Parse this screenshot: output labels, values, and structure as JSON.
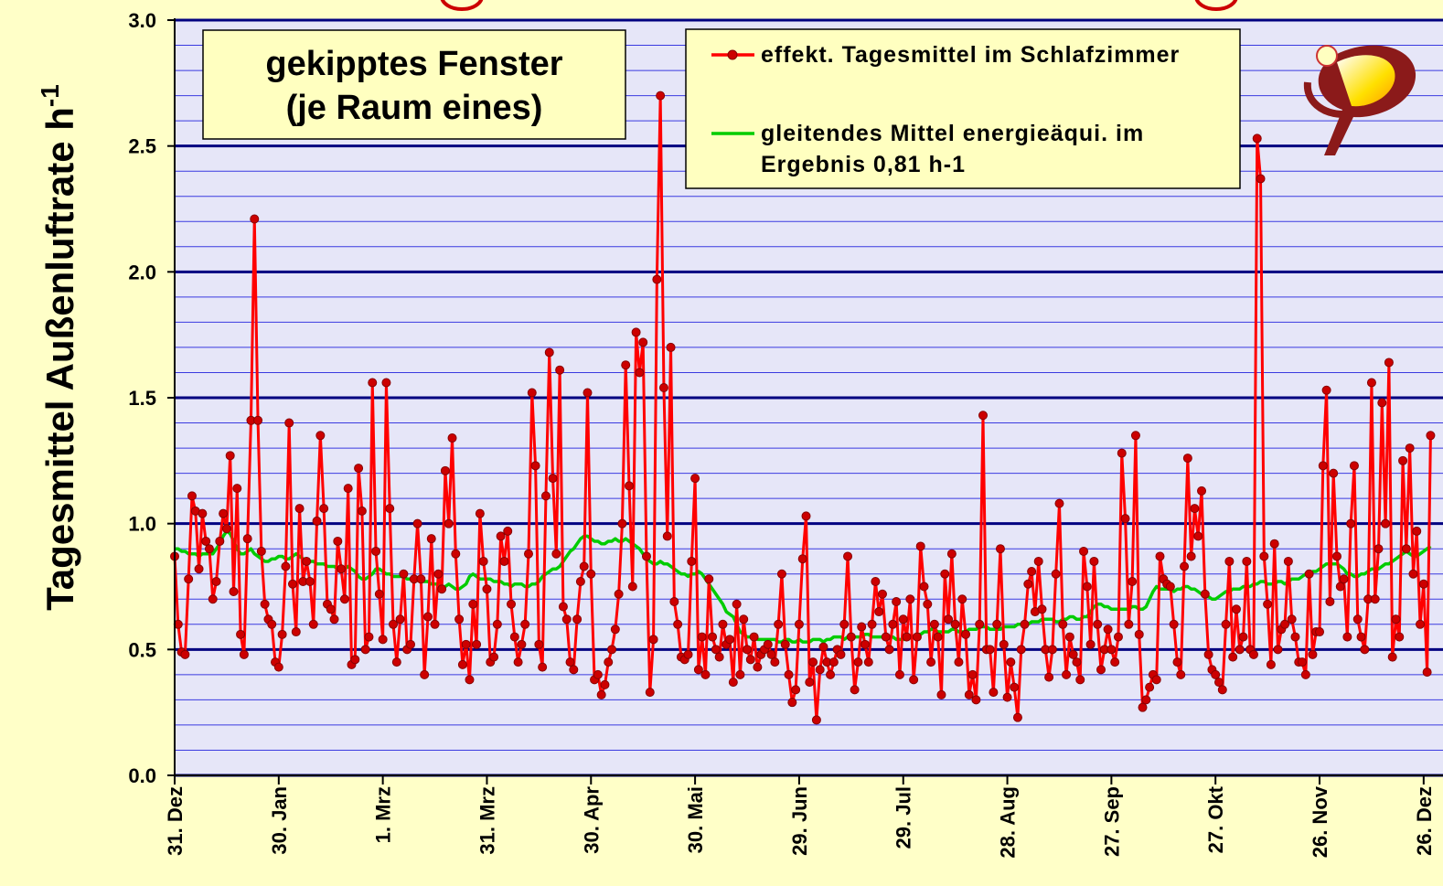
{
  "chart_data": {
    "type": "line",
    "annotations": [
      "gekipptes Fenster",
      "(je Raum eines)"
    ],
    "ylabel": "Tagesmittel Außenluftrate  h",
    "ylabel_sup": "-1",
    "ylim": [
      0,
      3
    ],
    "yticks": [
      {
        "value": 0,
        "label": "0.0"
      },
      0.5,
      {
        "value": 1,
        "label": "1.0"
      },
      1.5,
      {
        "value": 2,
        "label": "2.0"
      },
      2.5,
      {
        "value": 3,
        "label": "3.0"
      }
    ],
    "minor_yticks": [
      0.1,
      0.2,
      0.3,
      0.4,
      0.6,
      0.7,
      0.8,
      0.9,
      1.1,
      1.2,
      1.3,
      1.4,
      1.6,
      1.7,
      1.8,
      1.9,
      2.1,
      2.2,
      2.3,
      2.4,
      2.6,
      2.7,
      2.8,
      2.9
    ],
    "grid": true,
    "categories": [
      "31. Dez",
      null,
      null,
      null,
      null,
      null,
      null,
      null,
      null,
      null,
      null,
      null,
      null,
      null,
      null,
      null,
      null,
      null,
      null,
      null,
      null,
      null,
      null,
      null,
      null,
      null,
      null,
      null,
      null,
      null,
      "30. Jan",
      null,
      null,
      null,
      null,
      null,
      null,
      null,
      null,
      null,
      null,
      null,
      null,
      null,
      null,
      null,
      null,
      null,
      null,
      null,
      null,
      null,
      null,
      null,
      null,
      null,
      null,
      null,
      null,
      null,
      "1. Mrz",
      null,
      null,
      null,
      null,
      null,
      null,
      null,
      null,
      null,
      null,
      null,
      null,
      null,
      null,
      null,
      null,
      null,
      null,
      null,
      null,
      null,
      null,
      null,
      null,
      null,
      null,
      null,
      null,
      null,
      "31. Mrz",
      null,
      null,
      null,
      null,
      null,
      null,
      null,
      null,
      null,
      null,
      null,
      null,
      null,
      null,
      null,
      null,
      null,
      null,
      null,
      null,
      null,
      null,
      null,
      null,
      null,
      null,
      null,
      null,
      null,
      "30. Apr",
      null,
      null,
      null,
      null,
      null,
      null,
      null,
      null,
      null,
      null,
      null,
      null,
      null,
      null,
      null,
      null,
      null,
      null,
      null,
      null,
      null,
      null,
      null,
      null,
      null,
      null,
      null,
      null,
      null,
      "30. Mai",
      null,
      null,
      null,
      null,
      null,
      null,
      null,
      null,
      null,
      null,
      null,
      null,
      null,
      null,
      null,
      null,
      null,
      null,
      null,
      null,
      null,
      null,
      null,
      null,
      null,
      null,
      null,
      null,
      null,
      "29. Jun",
      null,
      null,
      null,
      null,
      null,
      null,
      null,
      null,
      null,
      null,
      null,
      null,
      null,
      null,
      null,
      null,
      null,
      null,
      null,
      null,
      null,
      null,
      null,
      null,
      null,
      null,
      null,
      null,
      null,
      "29. Jul",
      null,
      null,
      null,
      null,
      null,
      null,
      null,
      null,
      null,
      null,
      null,
      null,
      null,
      null,
      null,
      null,
      null,
      null,
      null,
      null,
      null,
      null,
      null,
      null,
      null,
      null,
      null,
      null,
      null,
      "28. Aug",
      null,
      null,
      null,
      null,
      null,
      null,
      null,
      null,
      null,
      null,
      null,
      null,
      null,
      null,
      null,
      null,
      null,
      null,
      null,
      null,
      null,
      null,
      null,
      null,
      null,
      null,
      null,
      null,
      null,
      "27. Sep",
      null,
      null,
      null,
      null,
      null,
      null,
      null,
      null,
      null,
      null,
      null,
      null,
      null,
      null,
      null,
      null,
      null,
      null,
      null,
      null,
      null,
      null,
      null,
      null,
      null,
      null,
      null,
      null,
      null,
      "27. Okt",
      null,
      null,
      null,
      null,
      null,
      null,
      null,
      null,
      null,
      null,
      null,
      null,
      null,
      null,
      null,
      null,
      null,
      null,
      null,
      null,
      null,
      null,
      null,
      null,
      null,
      null,
      null,
      null,
      null,
      "26. Nov",
      null,
      null,
      null,
      null,
      null,
      null,
      null,
      null,
      null,
      null,
      null,
      null,
      null,
      null,
      null,
      null,
      null,
      null,
      null,
      null,
      null,
      null,
      null,
      null,
      null,
      null,
      null,
      null,
      null,
      "26. Dez",
      null,
      null
    ],
    "series": [
      {
        "name": "effekt. Tagesmittel im Schlafzimmer",
        "color": "#ff0000",
        "marker_color": "#cc0000",
        "values": [
          0.87,
          0.6,
          0.49,
          0.48,
          0.78,
          1.11,
          1.05,
          0.82,
          1.04,
          0.93,
          0.9,
          0.7,
          0.77,
          0.93,
          1.04,
          0.98,
          1.27,
          0.73,
          1.14,
          0.56,
          0.48,
          0.94,
          1.41,
          2.21,
          1.41,
          0.89,
          0.68,
          0.62,
          0.6,
          0.45,
          0.43,
          0.56,
          0.83,
          1.4,
          0.76,
          0.57,
          1.06,
          0.77,
          0.85,
          0.77,
          0.6,
          1.01,
          1.35,
          1.06,
          0.68,
          0.66,
          0.62,
          0.93,
          0.82,
          0.7,
          1.14,
          0.44,
          0.46,
          1.22,
          1.05,
          0.5,
          0.55,
          1.56,
          0.89,
          0.72,
          0.54,
          1.56,
          1.06,
          0.6,
          0.45,
          0.62,
          0.8,
          0.5,
          0.52,
          0.78,
          1.0,
          0.78,
          0.4,
          0.63,
          0.94,
          0.6,
          0.8,
          0.74,
          1.21,
          1.0,
          1.34,
          0.88,
          0.62,
          0.44,
          0.52,
          0.38,
          0.68,
          0.52,
          1.04,
          0.85,
          0.74,
          0.45,
          0.47,
          0.6,
          0.95,
          0.85,
          0.97,
          0.68,
          0.55,
          0.45,
          0.52,
          0.6,
          0.88,
          1.52,
          1.23,
          0.52,
          0.43,
          1.11,
          1.68,
          1.18,
          0.88,
          1.61,
          0.67,
          0.62,
          0.45,
          0.42,
          0.62,
          0.77,
          0.83,
          1.52,
          0.8,
          0.38,
          0.4,
          0.32,
          0.36,
          0.45,
          0.5,
          0.58,
          0.72,
          1.0,
          1.63,
          1.15,
          0.75,
          1.76,
          1.6,
          1.72,
          0.87,
          0.33,
          0.54,
          1.97,
          2.7,
          1.54,
          0.95,
          1.7,
          0.69,
          0.6,
          0.47,
          0.46,
          0.48,
          0.85,
          1.18,
          0.42,
          0.55,
          0.4,
          0.78,
          0.55,
          0.5,
          0.47,
          0.6,
          0.52,
          0.54,
          0.37,
          0.68,
          0.4,
          0.62,
          0.5,
          0.46,
          0.55,
          0.43,
          0.48,
          0.5,
          0.52,
          0.48,
          0.45,
          0.6,
          0.8,
          0.52,
          0.4,
          0.29,
          0.34,
          0.6,
          0.86,
          1.03,
          0.37,
          0.45,
          0.22,
          0.42,
          0.51,
          0.45,
          0.4,
          0.45,
          0.5,
          0.48,
          0.6,
          0.87,
          0.55,
          0.34,
          0.45,
          0.59,
          0.52,
          0.45,
          0.6,
          0.77,
          0.65,
          0.72,
          0.55,
          0.5,
          0.6,
          0.69,
          0.4,
          0.62,
          0.55,
          0.7,
          0.38,
          0.55,
          0.91,
          0.75,
          0.68,
          0.45,
          0.6,
          0.55,
          0.32,
          0.8,
          0.62,
          0.88,
          0.6,
          0.45,
          0.7,
          0.56,
          0.32,
          0.4,
          0.3,
          0.6,
          1.43,
          0.5,
          0.5,
          0.33,
          0.6,
          0.9,
          0.52,
          0.31,
          0.45,
          0.35,
          0.23,
          0.5,
          0.6,
          0.76,
          0.81,
          0.65,
          0.85,
          0.66,
          0.5,
          0.39,
          0.5,
          0.8,
          1.08,
          0.6,
          0.4,
          0.55,
          0.48,
          0.45,
          0.38,
          0.89,
          0.75,
          0.52,
          0.85,
          0.6,
          0.42,
          0.5,
          0.58,
          0.5,
          0.45,
          0.55,
          1.28,
          1.02,
          0.6,
          0.77,
          1.35,
          0.56,
          0.27,
          0.3,
          0.35,
          0.4,
          0.38,
          0.87,
          0.78,
          0.76,
          0.75,
          0.6,
          0.45,
          0.4,
          0.83,
          1.26,
          0.87,
          1.06,
          0.95,
          1.13,
          0.72,
          0.48,
          0.42,
          0.4,
          0.37,
          0.34,
          0.6,
          0.85,
          0.47,
          0.66,
          0.5,
          0.55,
          0.85,
          0.5,
          0.48,
          2.53,
          2.37,
          0.87,
          0.68,
          0.44,
          0.92,
          0.5,
          0.58,
          0.6,
          0.85,
          0.62,
          0.55,
          0.45,
          0.45,
          0.4,
          0.8,
          0.48,
          0.57,
          0.57,
          1.23,
          1.53,
          0.69,
          1.2,
          0.87,
          0.75,
          0.78,
          0.55,
          1.0,
          1.23,
          0.62,
          0.55,
          0.5,
          0.7,
          1.56,
          0.7,
          0.9,
          1.48,
          1.0,
          1.64,
          0.47,
          0.62,
          0.55,
          1.25,
          0.9,
          1.3,
          0.8,
          0.97,
          0.6,
          0.76,
          0.41,
          1.35
        ]
      },
      {
        "name": "gleitendes Mittel energieäqui. im Ergebnis 0,81 h-1",
        "color": "#00cc00",
        "values": [
          0.9,
          0.9,
          0.89,
          0.89,
          0.88,
          0.88,
          0.88,
          0.87,
          0.88,
          0.88,
          0.88,
          0.88,
          0.9,
          0.92,
          0.95,
          0.97,
          0.96,
          0.93,
          0.9,
          0.88,
          0.88,
          0.89,
          0.9,
          0.88,
          0.87,
          0.86,
          0.85,
          0.85,
          0.86,
          0.86,
          0.87,
          0.87,
          0.86,
          0.86,
          0.87,
          0.88,
          0.87,
          0.86,
          0.86,
          0.85,
          0.85,
          0.84,
          0.84,
          0.84,
          0.83,
          0.83,
          0.83,
          0.82,
          0.82,
          0.82,
          0.83,
          0.82,
          0.81,
          0.79,
          0.78,
          0.78,
          0.79,
          0.8,
          0.82,
          0.82,
          0.81,
          0.8,
          0.8,
          0.79,
          0.79,
          0.79,
          0.79,
          0.78,
          0.78,
          0.78,
          0.78,
          0.77,
          0.77,
          0.77,
          0.76,
          0.76,
          0.76,
          0.75,
          0.75,
          0.76,
          0.75,
          0.74,
          0.74,
          0.75,
          0.76,
          0.79,
          0.8,
          0.79,
          0.78,
          0.78,
          0.78,
          0.78,
          0.77,
          0.77,
          0.77,
          0.76,
          0.76,
          0.75,
          0.76,
          0.76,
          0.76,
          0.75,
          0.75,
          0.76,
          0.76,
          0.77,
          0.79,
          0.8,
          0.81,
          0.82,
          0.82,
          0.83,
          0.85,
          0.87,
          0.89,
          0.9,
          0.92,
          0.94,
          0.95,
          0.95,
          0.94,
          0.93,
          0.93,
          0.92,
          0.92,
          0.93,
          0.93,
          0.94,
          0.93,
          0.93,
          0.94,
          0.93,
          0.92,
          0.91,
          0.9,
          0.88,
          0.86,
          0.85,
          0.84,
          0.84,
          0.85,
          0.84,
          0.84,
          0.83,
          0.82,
          0.81,
          0.8,
          0.8,
          0.79,
          0.8,
          0.8,
          0.81,
          0.8,
          0.78,
          0.76,
          0.74,
          0.72,
          0.7,
          0.68,
          0.65,
          0.64,
          0.63,
          0.6,
          0.57,
          0.56,
          0.55,
          0.55,
          0.55,
          0.54,
          0.54,
          0.54,
          0.54,
          0.54,
          0.54,
          0.53,
          0.53,
          0.54,
          0.54,
          0.53,
          0.53,
          0.54,
          0.53,
          0.53,
          0.53,
          0.54,
          0.54,
          0.54,
          0.53,
          0.54,
          0.54,
          0.55,
          0.55,
          0.55,
          0.54,
          0.55,
          0.56,
          0.55,
          0.55,
          0.55,
          0.56,
          0.56,
          0.55,
          0.55,
          0.55,
          0.55,
          0.54,
          0.55,
          0.55,
          0.54,
          0.54,
          0.54,
          0.54,
          0.55,
          0.55,
          0.56,
          0.56,
          0.57,
          0.57,
          0.58,
          0.58,
          0.57,
          0.57,
          0.57,
          0.57,
          0.58,
          0.58,
          0.57,
          0.57,
          0.57,
          0.58,
          0.58,
          0.58,
          0.59,
          0.59,
          0.59,
          0.58,
          0.58,
          0.58,
          0.58,
          0.59,
          0.59,
          0.59,
          0.59,
          0.6,
          0.6,
          0.6,
          0.6,
          0.61,
          0.61,
          0.61,
          0.62,
          0.62,
          0.62,
          0.62,
          0.61,
          0.61,
          0.62,
          0.62,
          0.63,
          0.63,
          0.62,
          0.62,
          0.63,
          0.63,
          0.65,
          0.67,
          0.68,
          0.68,
          0.67,
          0.67,
          0.66,
          0.66,
          0.66,
          0.66,
          0.66,
          0.66,
          0.67,
          0.67,
          0.66,
          0.66,
          0.67,
          0.7,
          0.73,
          0.75,
          0.74,
          0.74,
          0.74,
          0.74,
          0.73,
          0.74,
          0.74,
          0.75,
          0.75,
          0.74,
          0.74,
          0.73,
          0.72,
          0.71,
          0.71,
          0.7,
          0.7,
          0.71,
          0.72,
          0.73,
          0.73,
          0.74,
          0.74,
          0.74,
          0.75,
          0.75,
          0.75,
          0.76,
          0.76,
          0.77,
          0.77,
          0.76,
          0.76,
          0.76,
          0.77,
          0.77,
          0.76,
          0.77,
          0.78,
          0.78,
          0.78,
          0.79,
          0.8,
          0.8,
          0.81,
          0.81,
          0.82,
          0.83,
          0.84,
          0.84,
          0.84,
          0.84,
          0.83,
          0.82,
          0.8,
          0.8,
          0.79,
          0.79,
          0.8,
          0.8,
          0.81,
          0.82,
          0.82,
          0.82,
          0.83,
          0.84,
          0.84,
          0.85,
          0.86,
          0.87,
          0.88,
          0.89,
          0.88,
          0.87,
          0.87,
          0.88,
          0.89,
          0.9,
          0.91
        ]
      }
    ]
  }
}
